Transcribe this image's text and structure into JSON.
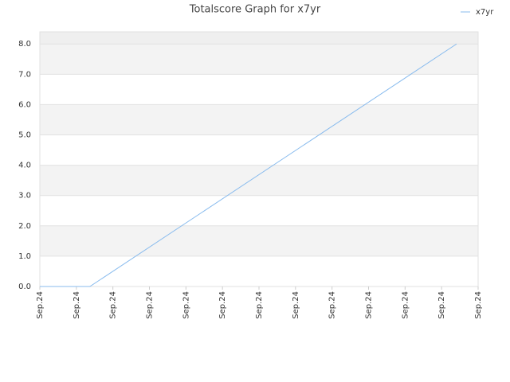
{
  "chart_data": {
    "type": "line",
    "title": "Totalscore Graph for x7yr",
    "x": [
      0,
      1.37,
      11.41
    ],
    "series": [
      {
        "name": "x7yr",
        "color": "#88bbee",
        "values": [
          0,
          0,
          8
        ]
      }
    ],
    "xlim": [
      0,
      12
    ],
    "xticks": [
      {
        "value": 0,
        "label": "Sep.24"
      },
      {
        "value": 1,
        "label": "Sep.24"
      },
      {
        "value": 2,
        "label": "Sep.24"
      },
      {
        "value": 3,
        "label": "Sep.24"
      },
      {
        "value": 4,
        "label": "Sep.24"
      },
      {
        "value": 5,
        "label": "Sep.24"
      },
      {
        "value": 6,
        "label": "Sep.24"
      },
      {
        "value": 7,
        "label": "Sep.24"
      },
      {
        "value": 8,
        "label": "Sep.24"
      },
      {
        "value": 9,
        "label": "Sep.24"
      },
      {
        "value": 10,
        "label": "Sep.24"
      },
      {
        "value": 11,
        "label": "Sep.24"
      },
      {
        "value": 12,
        "label": "Sep.24"
      }
    ],
    "ylim": [
      0,
      8.4
    ],
    "yticks": [
      {
        "value": 0,
        "label": "0.0"
      },
      {
        "value": 1,
        "label": "1.0"
      },
      {
        "value": 2,
        "label": "2.0"
      },
      {
        "value": 3,
        "label": "3.0"
      },
      {
        "value": 4,
        "label": "4.0"
      },
      {
        "value": 5,
        "label": "5.0"
      },
      {
        "value": 6,
        "label": "6.0"
      },
      {
        "value": 7,
        "label": "7.0"
      },
      {
        "value": 8,
        "label": "8.0"
      }
    ],
    "grid": true,
    "legend": "top-right"
  }
}
